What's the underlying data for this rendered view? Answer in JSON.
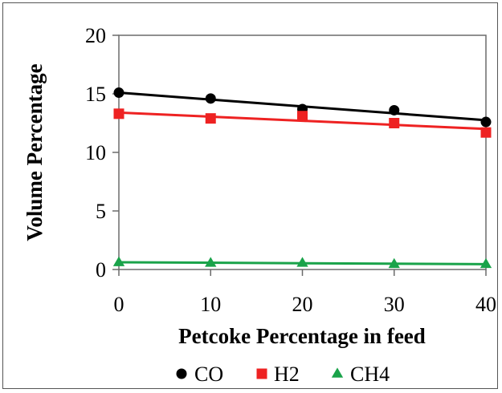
{
  "chart_data": {
    "type": "scatter",
    "title": "",
    "xlabel": "Petcoke Percentage in feed",
    "ylabel": "Volume Percentage",
    "xlim": [
      0,
      40
    ],
    "ylim": [
      0,
      20
    ],
    "xticks": [
      0,
      10,
      20,
      30,
      40
    ],
    "yticks": [
      0,
      5,
      10,
      15,
      20
    ],
    "x_tick_labels": [
      "0",
      "10",
      "20",
      "30",
      "40"
    ],
    "y_tick_labels": [
      "0",
      "5",
      "10",
      "15",
      "20"
    ],
    "grid": false,
    "legend_position": "bottom",
    "trendlines": "linear",
    "x": [
      0,
      10,
      20,
      30,
      40
    ],
    "series": [
      {
        "name": "CO",
        "marker": "circle",
        "color": "#000000",
        "values": [
          15.1,
          14.6,
          13.7,
          13.6,
          12.6
        ],
        "trend": [
          15.1,
          12.75
        ]
      },
      {
        "name": "H2",
        "marker": "square",
        "color": "#ee2222",
        "values": [
          13.3,
          12.9,
          13.1,
          12.5,
          11.7
        ],
        "trend": [
          13.4,
          12.0
        ]
      },
      {
        "name": "CH4",
        "marker": "triangle",
        "color": "#1aa34a",
        "values": [
          0.6,
          0.55,
          0.55,
          0.45,
          0.45
        ],
        "trend": [
          0.62,
          0.45
        ]
      }
    ]
  }
}
